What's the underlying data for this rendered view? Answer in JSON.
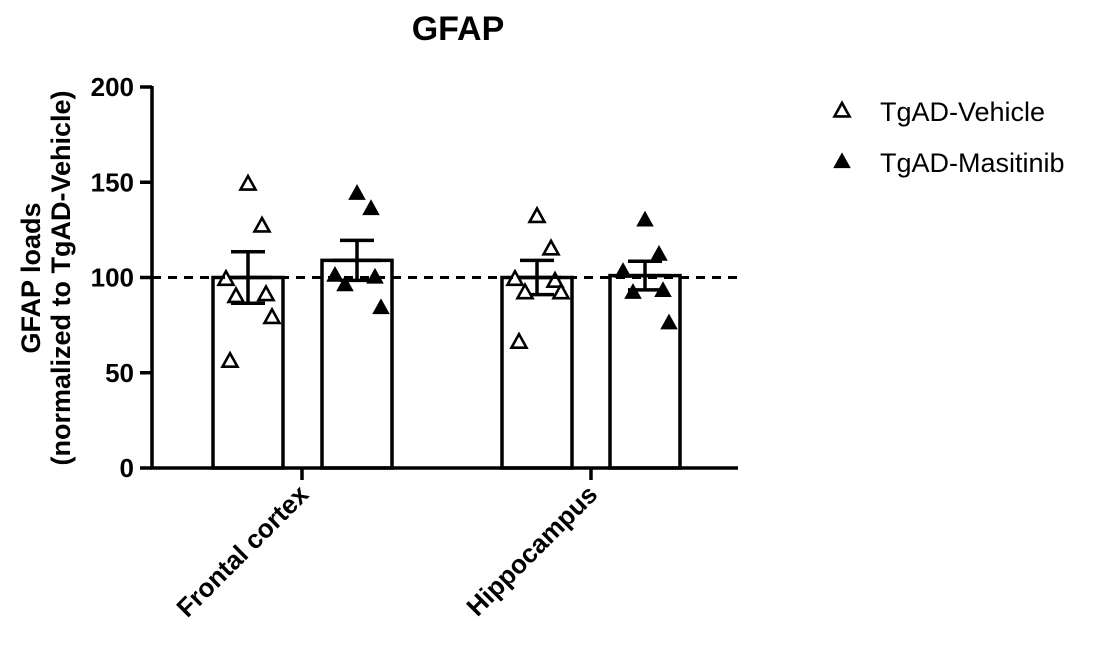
{
  "chart_data": {
    "type": "bar",
    "title": "GFAP",
    "ylabel_line1": "GFAP loads",
    "ylabel_line2": "(normalized to TgAD-Vehicle)",
    "xlabel": "",
    "ylim": [
      0,
      200
    ],
    "yticks": [
      0,
      50,
      100,
      150,
      200
    ],
    "reference_line": 100,
    "categories": [
      "Frontal cortex",
      "Hippocampus"
    ],
    "legend_position": "top-right",
    "series": [
      {
        "name": "TgAD-Vehicle",
        "marker": "open-triangle",
        "values": [
          100,
          100
        ],
        "sem": [
          13.5,
          9
        ],
        "points": [
          [
            149,
            127,
            99,
            91,
            90,
            79,
            56
          ],
          [
            132,
            115,
            99,
            98,
            92,
            92,
            66
          ]
        ]
      },
      {
        "name": "TgAD-Masitinib",
        "marker": "filled-triangle",
        "values": [
          109,
          101
        ],
        "sem": [
          10.5,
          7.5
        ],
        "points": [
          [
            144,
            136,
            101,
            100,
            96,
            84
          ],
          [
            130,
            112,
            103,
            93,
            92,
            76
          ]
        ]
      }
    ]
  }
}
